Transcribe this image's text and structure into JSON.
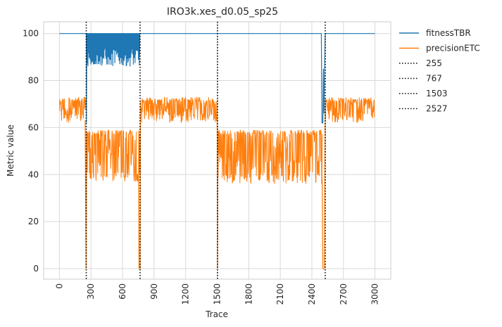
{
  "chart_data": {
    "type": "line",
    "title": "IRO3k.xes_d0.05_sp25",
    "xlabel": "Trace",
    "ylabel": "Metric value",
    "xlim": [
      -150,
      3150
    ],
    "ylim": [
      -4.5,
      105
    ],
    "xticks": [
      0,
      300,
      600,
      900,
      1200,
      1500,
      1800,
      2100,
      2400,
      2700,
      3000
    ],
    "yticks": [
      0,
      20,
      40,
      60,
      80,
      100
    ],
    "grid": true,
    "legend_position": "outside-top-right",
    "series": [
      {
        "name": "fitnessTBR",
        "color": "#1f77b4",
        "segments": [
          {
            "x": [
              0,
              255
            ],
            "stable": 100
          },
          {
            "x": [
              256,
              766
            ],
            "top": 100,
            "low_range": [
              86,
              94
            ],
            "note_low_min": 86
          },
          {
            "x": [
              767,
              2490
            ],
            "stable": 100
          },
          {
            "x": [
              2490,
              2527
            ],
            "dip_min": 62,
            "dip_max": 85
          },
          {
            "x": [
              2527,
              3000
            ],
            "stable": 100
          }
        ]
      },
      {
        "name": "precisionETC",
        "color": "#ff7f0e",
        "segments": [
          {
            "x": [
              0,
              255
            ],
            "range": [
              62,
              73
            ]
          },
          {
            "x": [
              256,
              766
            ],
            "range": [
              37,
              59
            ]
          },
          {
            "x": [
              767,
              1503
            ],
            "range": [
              62,
              73
            ]
          },
          {
            "x": [
              1503,
              2500
            ],
            "range": [
              36,
              59
            ]
          },
          {
            "x": [
              2527,
              3000
            ],
            "range": [
              62,
              73
            ]
          }
        ],
        "drops_to_zero_at": [
          255,
          767,
          1503,
          2527
        ]
      }
    ],
    "drift_lines": [
      {
        "name": "255",
        "x": 255
      },
      {
        "name": "767",
        "x": 767
      },
      {
        "name": "1503",
        "x": 1503
      },
      {
        "name": "2527",
        "x": 2527
      }
    ]
  }
}
